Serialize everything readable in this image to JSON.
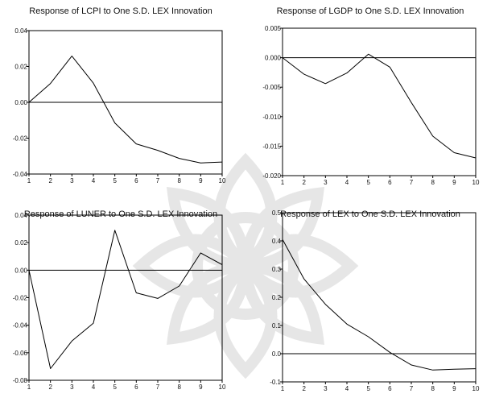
{
  "chart_data": [
    {
      "type": "line",
      "title": "Response of LCPI to One S.D. LEX Innovation",
      "x": [
        1,
        2,
        3,
        4,
        5,
        6,
        7,
        8,
        9,
        10
      ],
      "series": [
        {
          "values": [
            0.0,
            0.0105,
            0.0258,
            0.0107,
            -0.0115,
            -0.0232,
            -0.0268,
            -0.0313,
            -0.0338,
            -0.0333
          ]
        }
      ],
      "ylim": [
        -0.04,
        0.04
      ],
      "yticks": [
        0.04,
        0.02,
        0.0,
        -0.02,
        -0.04
      ],
      "ytick_labels": [
        "0.04",
        "0.02",
        "0.00",
        "-0.02",
        "-0.04"
      ],
      "xlim": [
        1,
        10
      ],
      "grid": false
    },
    {
      "type": "line",
      "title": "Response of LGDP to One S.D. LEX Innovation",
      "x": [
        1,
        2,
        3,
        4,
        5,
        6,
        7,
        8,
        9,
        10
      ],
      "series": [
        {
          "values": [
            0.0,
            -0.0028,
            -0.0044,
            -0.0026,
            0.0006,
            -0.0016,
            -0.0076,
            -0.0133,
            -0.0161,
            -0.017
          ]
        }
      ],
      "ylim": [
        -0.02,
        0.005
      ],
      "yticks": [
        0.005,
        0.0,
        -0.005,
        -0.01,
        -0.015,
        -0.02
      ],
      "ytick_labels": [
        "0.005",
        "0.000",
        "-0.005",
        "-0.010",
        "-0.015",
        "-0.020"
      ],
      "xlim": [
        1,
        10
      ],
      "grid": false
    },
    {
      "type": "line",
      "title": "Response of LUNER to One S.D. LEX Innovation",
      "x": [
        1,
        2,
        3,
        4,
        5,
        6,
        7,
        8,
        9,
        10
      ],
      "series": [
        {
          "values": [
            0.0,
            -0.0715,
            -0.0515,
            -0.0385,
            0.029,
            -0.0165,
            -0.0205,
            -0.0115,
            0.0125,
            0.004
          ]
        }
      ],
      "ylim": [
        -0.08,
        0.04
      ],
      "yticks": [
        0.04,
        0.02,
        0.0,
        -0.02,
        -0.04,
        -0.06,
        -0.08
      ],
      "ytick_labels": [
        "0.04",
        "0.02",
        "0.00",
        "-0.02",
        "-0.04",
        "-0.06",
        "-0.08"
      ],
      "xlim": [
        1,
        10
      ],
      "grid": false
    },
    {
      "type": "line",
      "title": "Response of LEX to One S.D. LEX Innovation",
      "x": [
        1,
        2,
        3,
        4,
        5,
        6,
        7,
        8,
        9,
        10
      ],
      "series": [
        {
          "values": [
            0.405,
            0.265,
            0.175,
            0.105,
            0.06,
            0.005,
            -0.04,
            -0.058,
            -0.055,
            -0.053
          ]
        }
      ],
      "ylim": [
        -0.1,
        0.5
      ],
      "yticks": [
        0.5,
        0.4,
        0.3,
        0.2,
        0.1,
        0.0,
        -0.1
      ],
      "ytick_labels": [
        "0.5",
        "0.4",
        "0.3",
        "0.2",
        "0.1",
        "0.0",
        "-0.1"
      ],
      "xlim": [
        1,
        10
      ],
      "grid": false
    }
  ],
  "colors": {
    "line": "#000000",
    "axis": "#000000",
    "watermark": "#c8c8c8"
  }
}
